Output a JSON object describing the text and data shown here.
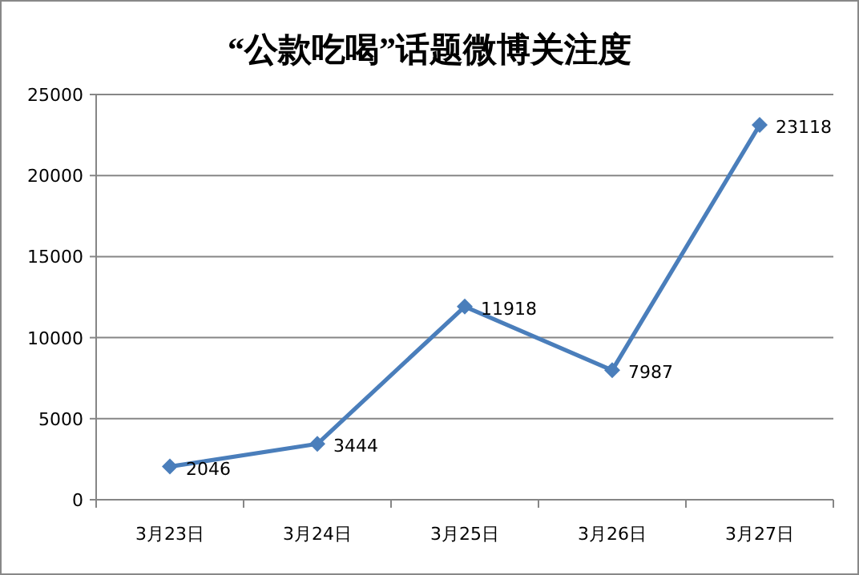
{
  "chart_data": {
    "type": "line",
    "title": "“公款吃喝”话题微博关注度",
    "categories": [
      "3月23日",
      "3月24日",
      "3月25日",
      "3月26日",
      "3月27日"
    ],
    "series": [
      {
        "color": "#4a7ebb",
        "values": [
          2046,
          3444,
          11918,
          7987,
          23118
        ]
      }
    ],
    "ylim": [
      0,
      25000
    ],
    "yticks": [
      0,
      5000,
      10000,
      15000,
      20000,
      25000
    ],
    "grid": "y",
    "marker": "diamond",
    "line_style": "solid",
    "data_labels": true
  }
}
